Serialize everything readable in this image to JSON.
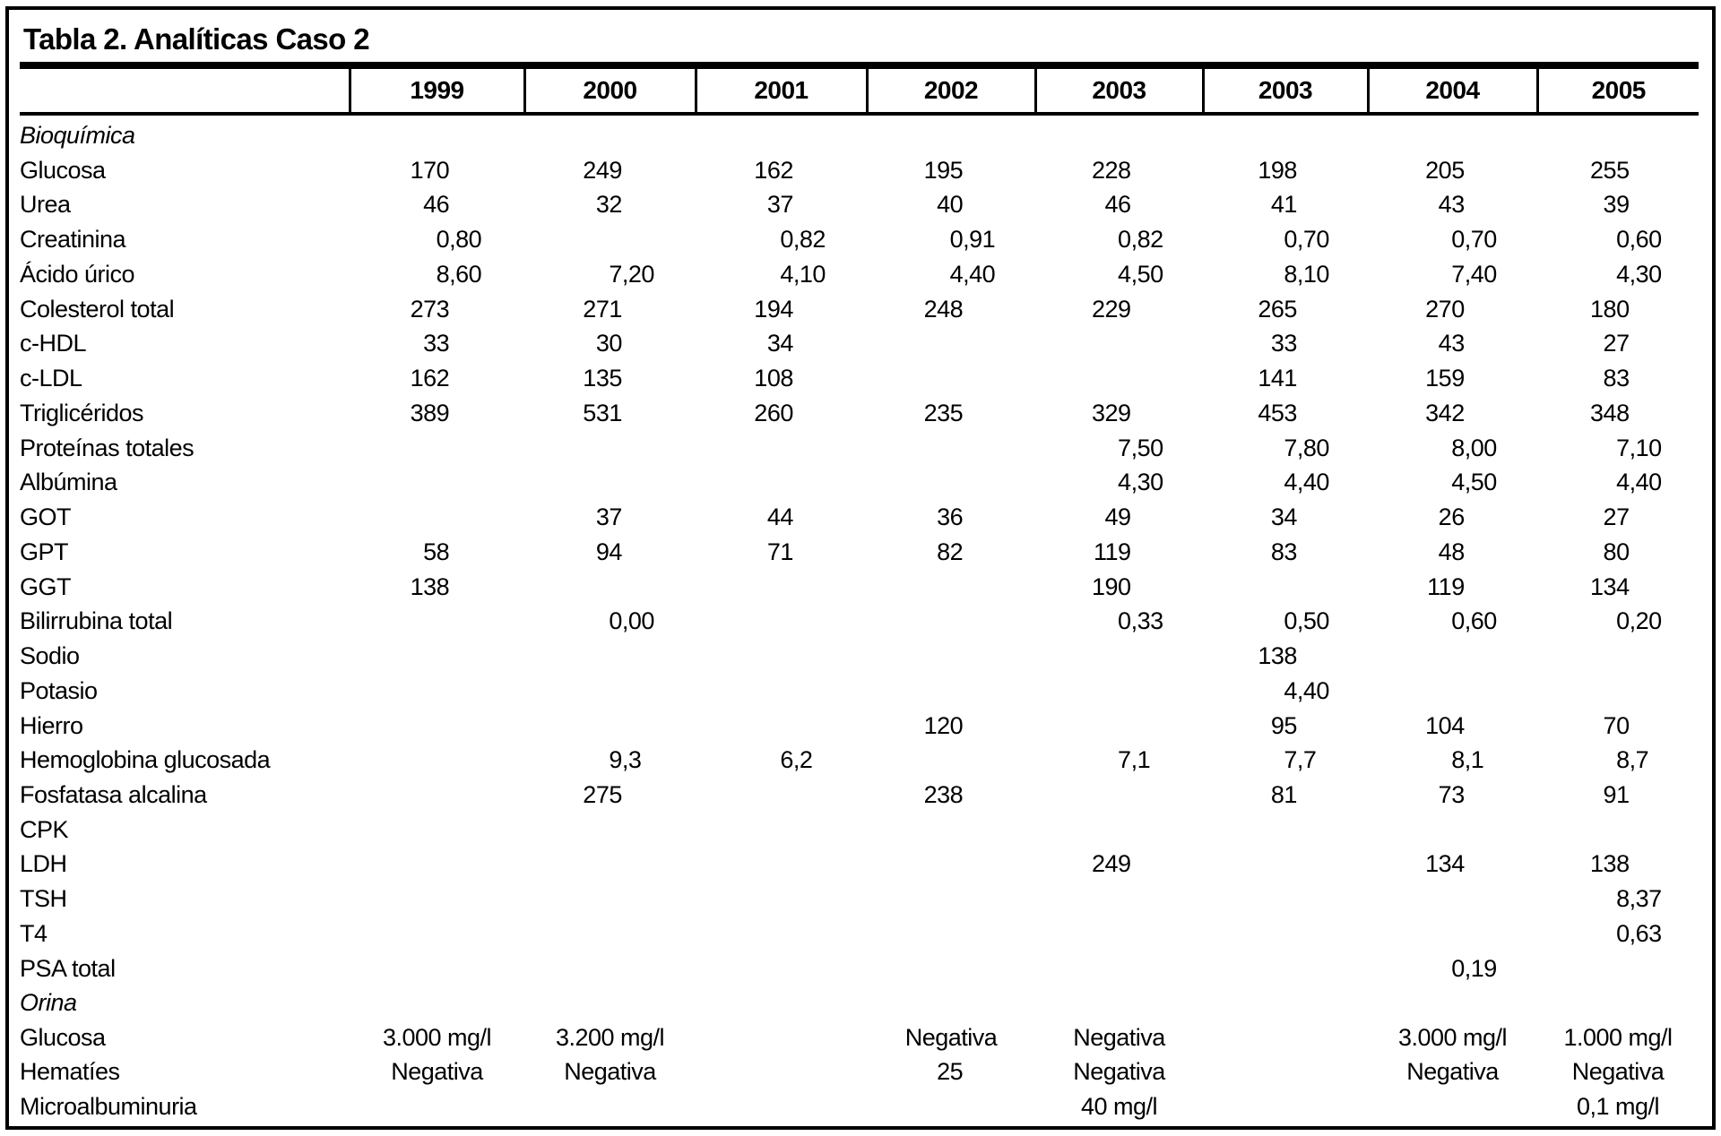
{
  "table": {
    "title": "Tabla 2. Analíticas Caso 2",
    "columns": [
      "1999",
      "2000",
      "2001",
      "2002",
      "2003",
      "2003",
      "2004",
      "2005"
    ],
    "rows": [
      {
        "label": "Bioquímica",
        "section": true,
        "values": [
          "",
          "",
          "",
          "",
          "",
          "",
          "",
          ""
        ]
      },
      {
        "label": "Glucosa",
        "values": [
          "170",
          "249",
          "162",
          "195",
          "228",
          "198",
          "205",
          "255"
        ]
      },
      {
        "label": "Urea",
        "values": [
          "46",
          "32",
          "37",
          "40",
          "46",
          "41",
          "43",
          "39"
        ]
      },
      {
        "label": "Creatinina",
        "values": [
          "0,80",
          "",
          "0,82",
          "0,91",
          "0,82",
          "0,70",
          "0,70",
          "0,60"
        ]
      },
      {
        "label": "Ácido úrico",
        "values": [
          "8,60",
          "7,20",
          "4,10",
          "4,40",
          "4,50",
          "8,10",
          "7,40",
          "4,30"
        ]
      },
      {
        "label": "Colesterol total",
        "values": [
          "273",
          "271",
          "194",
          "248",
          "229",
          "265",
          "270",
          "180"
        ]
      },
      {
        "label": "c-HDL",
        "values": [
          "33",
          "30",
          "34",
          "",
          "",
          "33",
          "43",
          "27"
        ]
      },
      {
        "label": "c-LDL",
        "values": [
          "162",
          "135",
          "108",
          "",
          "",
          "141",
          "159",
          "83"
        ]
      },
      {
        "label": "Triglicéridos",
        "values": [
          "389",
          "531",
          "260",
          "235",
          "329",
          "453",
          "342",
          "348"
        ]
      },
      {
        "label": "Proteínas totales",
        "values": [
          "",
          "",
          "",
          "",
          "7,50",
          "7,80",
          "8,00",
          "7,10"
        ]
      },
      {
        "label": "Albúmina",
        "values": [
          "",
          "",
          "",
          "",
          "4,30",
          "4,40",
          "4,50",
          "4,40"
        ]
      },
      {
        "label": "GOT",
        "values": [
          "",
          "37",
          "44",
          "36",
          "49",
          "34",
          "26",
          "27"
        ]
      },
      {
        "label": "GPT",
        "values": [
          "58",
          "94",
          "71",
          "82",
          "119",
          "83",
          "48",
          "80"
        ]
      },
      {
        "label": "GGT",
        "values": [
          "138",
          "",
          "",
          "",
          "190",
          "",
          "119",
          "134"
        ]
      },
      {
        "label": "Bilirrubina total",
        "values": [
          "",
          "0,00",
          "",
          "",
          "0,33",
          "0,50",
          "0,60",
          "0,20"
        ]
      },
      {
        "label": "Sodio",
        "values": [
          "",
          "",
          "",
          "",
          "",
          "138",
          "",
          ""
        ]
      },
      {
        "label": "Potasio",
        "values": [
          "",
          "",
          "",
          "",
          "",
          "4,40",
          "",
          ""
        ]
      },
      {
        "label": "Hierro",
        "values": [
          "",
          "",
          "",
          "120",
          "",
          "95",
          "104",
          "70"
        ]
      },
      {
        "label": "Hemoglobina glucosada",
        "values": [
          "",
          "9,3",
          "6,2",
          "",
          "7,1",
          "7,7",
          "8,1",
          "8,7"
        ]
      },
      {
        "label": "Fosfatasa alcalina",
        "values": [
          "",
          "275",
          "",
          "238",
          "",
          "81",
          "73",
          "91"
        ]
      },
      {
        "label": "CPK",
        "values": [
          "",
          "",
          "",
          "",
          "",
          "",
          "",
          ""
        ]
      },
      {
        "label": "LDH",
        "values": [
          "",
          "",
          "",
          "",
          "249",
          "",
          "134",
          "138"
        ]
      },
      {
        "label": "TSH",
        "values": [
          "",
          "",
          "",
          "",
          "",
          "",
          "",
          "8,37"
        ]
      },
      {
        "label": "T4",
        "values": [
          "",
          "",
          "",
          "",
          "",
          "",
          "",
          "0,63"
        ]
      },
      {
        "label": "PSA total",
        "values": [
          "",
          "",
          "",
          "",
          "",
          "",
          "0,19",
          ""
        ]
      },
      {
        "label": "Orina",
        "section": true,
        "values": [
          "",
          "",
          "",
          "",
          "",
          "",
          "",
          ""
        ]
      },
      {
        "label": "Glucosa",
        "values": [
          "3.000 mg/l",
          "3.200 mg/l",
          "",
          "Negativa",
          "Negativa",
          "",
          "3.000 mg/l",
          "1.000 mg/l"
        ]
      },
      {
        "label": "Hematíes",
        "values": [
          "Negativa",
          "Negativa",
          "",
          "25",
          "Negativa",
          "",
          "Negativa",
          "Negativa"
        ]
      },
      {
        "label": "Microalbuminuria",
        "values": [
          "",
          "",
          "",
          "",
          "40 mg/l",
          "",
          "",
          "0,1 mg/l"
        ]
      }
    ],
    "colors": {
      "text": "#000000",
      "background": "#ffffff",
      "rule": "#000000"
    }
  }
}
